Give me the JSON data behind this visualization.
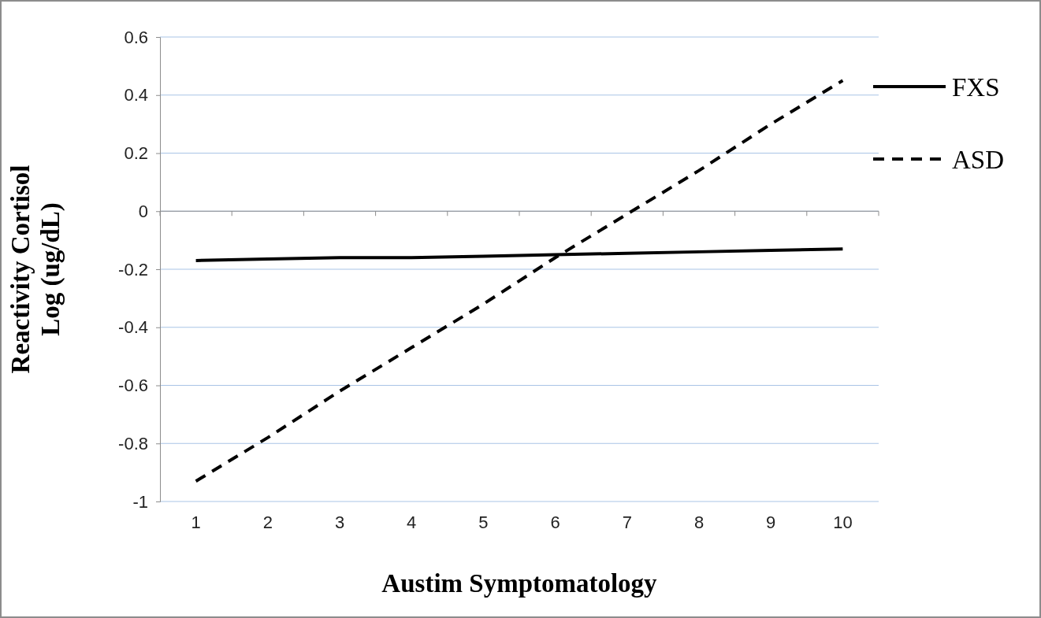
{
  "chart_data": {
    "type": "line",
    "xlabel": "Austim Symptomatology",
    "ylabel": "Reactivity Cortisol\nLog (ug/dL)",
    "categories": [
      "1",
      "2",
      "3",
      "4",
      "5",
      "6",
      "7",
      "8",
      "9",
      "10"
    ],
    "series": [
      {
        "name": "FXS",
        "color": "#000000",
        "line_style": "solid",
        "values": [
          -0.17,
          -0.165,
          -0.16,
          -0.16,
          -0.155,
          -0.15,
          -0.145,
          -0.14,
          -0.135,
          -0.13
        ]
      },
      {
        "name": "ASD",
        "color": "#000000",
        "line_style": "dashed",
        "values": [
          -0.93,
          -0.78,
          -0.62,
          -0.47,
          -0.32,
          -0.16,
          -0.01,
          0.14,
          0.3,
          0.45
        ]
      }
    ],
    "ylim": [
      -1,
      0.6
    ],
    "yticks": [
      -1,
      -0.8,
      -0.6,
      -0.4,
      -0.2,
      0,
      0.2,
      0.4,
      0.6
    ],
    "grid": "y",
    "legend": "right",
    "marker": "none"
  }
}
